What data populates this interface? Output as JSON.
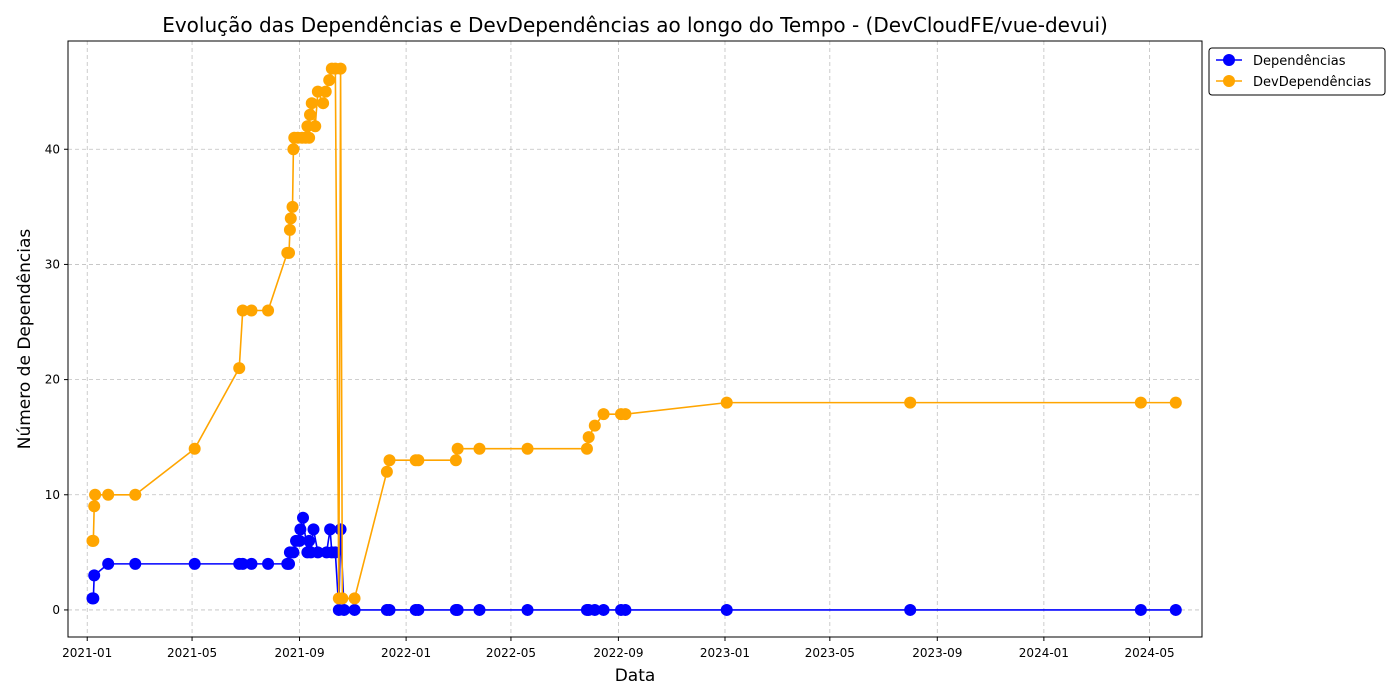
{
  "chart_data": {
    "type": "line",
    "title": "Evolução das Dependências e DevDependências ao longo do Tempo - (DevCloudFE/vue-devui)",
    "xlabel": "Data",
    "ylabel": "Número de Dependências",
    "x_type": "date",
    "xlim": [
      "2020-12-10",
      "2024-06-30"
    ],
    "ylim": [
      -2.35,
      49.4
    ],
    "x_ticks": [
      "2021-01",
      "2021-05",
      "2021-09",
      "2022-01",
      "2022-05",
      "2022-09",
      "2023-01",
      "2023-05",
      "2023-09",
      "2024-01",
      "2024-05"
    ],
    "y_ticks": [
      0,
      10,
      20,
      30,
      40
    ],
    "grid": true,
    "legend_position": "upper-right-outside",
    "series": [
      {
        "name": "Dependências",
        "color": "#0000ff",
        "points": [
          [
            "2021-01-07",
            1
          ],
          [
            "2021-01-08",
            1
          ],
          [
            "2021-01-09",
            3
          ],
          [
            "2021-01-25",
            4
          ],
          [
            "2021-02-25",
            4
          ],
          [
            "2021-05-04",
            4
          ],
          [
            "2021-06-24",
            4
          ],
          [
            "2021-06-28",
            4
          ],
          [
            "2021-07-08",
            4
          ],
          [
            "2021-07-27",
            4
          ],
          [
            "2021-08-18",
            4
          ],
          [
            "2021-08-20",
            4
          ],
          [
            "2021-08-21",
            5
          ],
          [
            "2021-08-25",
            5
          ],
          [
            "2021-08-28",
            6
          ],
          [
            "2021-09-01",
            6
          ],
          [
            "2021-09-02",
            7
          ],
          [
            "2021-09-05",
            8
          ],
          [
            "2021-09-10",
            5
          ],
          [
            "2021-09-12",
            6
          ],
          [
            "2021-09-14",
            5
          ],
          [
            "2021-09-17",
            7
          ],
          [
            "2021-09-22",
            5
          ],
          [
            "2021-10-02",
            5
          ],
          [
            "2021-10-06",
            7
          ],
          [
            "2021-10-08",
            5
          ],
          [
            "2021-10-12",
            5
          ],
          [
            "2021-10-16",
            0
          ],
          [
            "2021-10-18",
            7
          ],
          [
            "2021-10-22",
            0
          ],
          [
            "2021-11-03",
            0
          ],
          [
            "2021-12-10",
            0
          ],
          [
            "2021-12-13",
            0
          ],
          [
            "2022-01-12",
            0
          ],
          [
            "2022-01-15",
            0
          ],
          [
            "2022-02-27",
            0
          ],
          [
            "2022-03-01",
            0
          ],
          [
            "2022-03-26",
            0
          ],
          [
            "2022-05-20",
            0
          ],
          [
            "2022-07-27",
            0
          ],
          [
            "2022-07-29",
            0
          ],
          [
            "2022-08-05",
            0
          ],
          [
            "2022-08-15",
            0
          ],
          [
            "2022-09-04",
            0
          ],
          [
            "2022-09-09",
            0
          ],
          [
            "2023-01-03",
            0
          ],
          [
            "2023-08-01",
            0
          ],
          [
            "2024-04-21",
            0
          ],
          [
            "2024-05-31",
            0
          ]
        ]
      },
      {
        "name": "DevDependências",
        "color": "#ffa500",
        "points": [
          [
            "2021-01-07",
            6
          ],
          [
            "2021-01-08",
            6
          ],
          [
            "2021-01-09",
            9
          ],
          [
            "2021-01-10",
            10
          ],
          [
            "2021-01-25",
            10
          ],
          [
            "2021-02-25",
            10
          ],
          [
            "2021-05-04",
            14
          ],
          [
            "2021-06-24",
            21
          ],
          [
            "2021-06-28",
            26
          ],
          [
            "2021-07-08",
            26
          ],
          [
            "2021-07-27",
            26
          ],
          [
            "2021-08-18",
            31
          ],
          [
            "2021-08-20",
            31
          ],
          [
            "2021-08-21",
            33
          ],
          [
            "2021-08-22",
            34
          ],
          [
            "2021-08-24",
            35
          ],
          [
            "2021-08-25",
            40
          ],
          [
            "2021-08-26",
            41
          ],
          [
            "2021-08-30",
            41
          ],
          [
            "2021-09-04",
            41
          ],
          [
            "2021-09-08",
            41
          ],
          [
            "2021-09-10",
            42
          ],
          [
            "2021-09-12",
            41
          ],
          [
            "2021-09-13",
            43
          ],
          [
            "2021-09-15",
            44
          ],
          [
            "2021-09-19",
            42
          ],
          [
            "2021-09-22",
            45
          ],
          [
            "2021-09-28",
            44
          ],
          [
            "2021-10-01",
            45
          ],
          [
            "2021-10-05",
            46
          ],
          [
            "2021-10-08",
            47
          ],
          [
            "2021-10-12",
            47
          ],
          [
            "2021-10-16",
            1
          ],
          [
            "2021-10-18",
            47
          ],
          [
            "2021-10-20",
            1
          ],
          [
            "2021-11-03",
            1
          ],
          [
            "2021-12-10",
            12
          ],
          [
            "2021-12-13",
            13
          ],
          [
            "2022-01-12",
            13
          ],
          [
            "2022-01-15",
            13
          ],
          [
            "2022-02-27",
            13
          ],
          [
            "2022-03-01",
            14
          ],
          [
            "2022-03-26",
            14
          ],
          [
            "2022-05-20",
            14
          ],
          [
            "2022-07-27",
            14
          ],
          [
            "2022-07-29",
            15
          ],
          [
            "2022-08-05",
            16
          ],
          [
            "2022-08-15",
            17
          ],
          [
            "2022-09-04",
            17
          ],
          [
            "2022-09-09",
            17
          ],
          [
            "2023-01-03",
            18
          ],
          [
            "2023-08-01",
            18
          ],
          [
            "2024-04-21",
            18
          ],
          [
            "2024-05-31",
            18
          ]
        ]
      }
    ]
  }
}
